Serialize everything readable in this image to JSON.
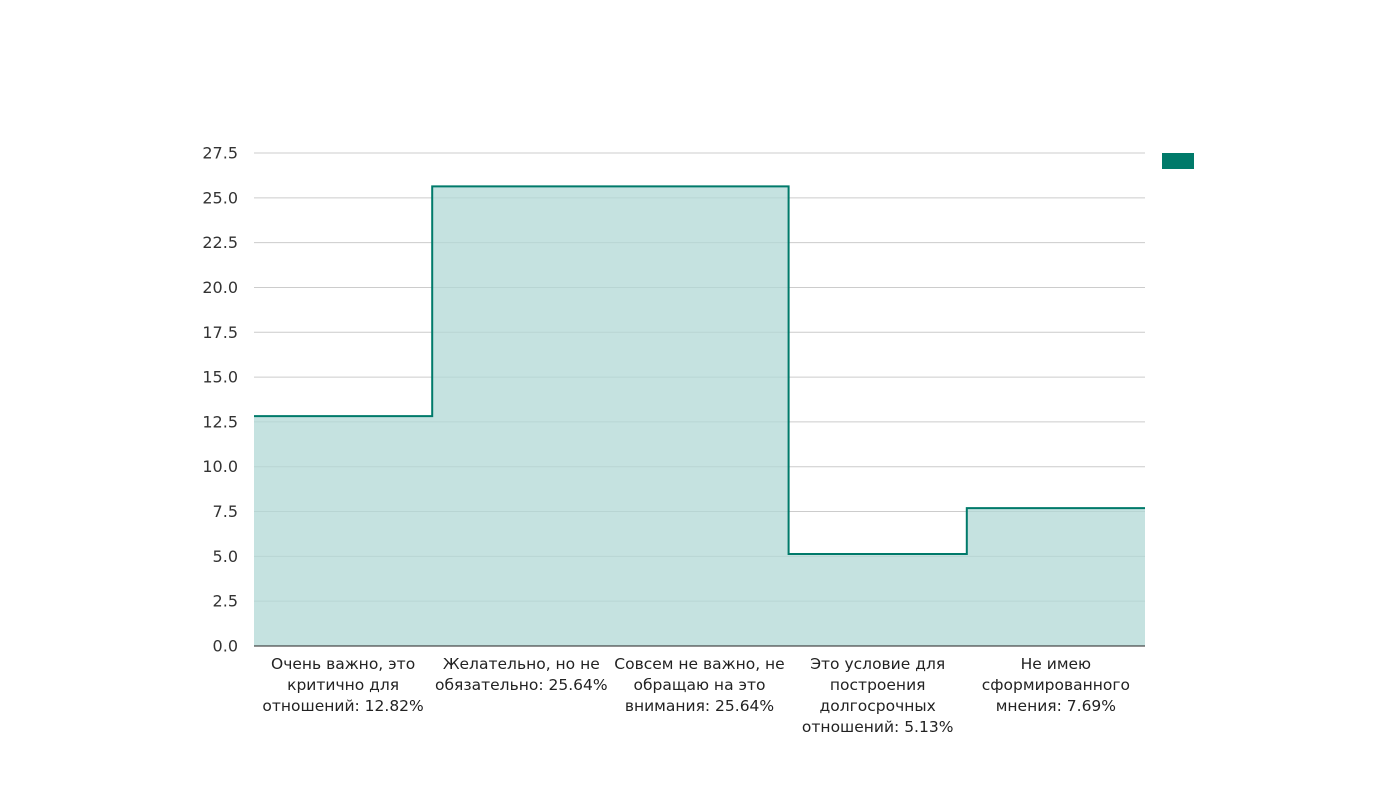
{
  "chart_data": {
    "type": "area",
    "step": true,
    "categories": [
      "Очень важно, это критично для отношений: 12.82%",
      "Желательно, но не обязательно: 25.64%",
      "Совсем не важно, не обращаю на это внимания: 25.64%",
      "Это условие для построения долгосрочных отношений: 5.13%",
      "Не имею сформированного мнения: 7.69%"
    ],
    "category_lines": [
      [
        "Очень важно, это",
        "критично для",
        "отношений: 12.82%"
      ],
      [
        "Желательно, но не",
        "обязательно: 25.64%"
      ],
      [
        "Совсем не важно, не",
        "обращаю на это",
        "внимания: 25.64%"
      ],
      [
        "Это условие для",
        "построения",
        "долгосрочных",
        "отношений: 5.13%"
      ],
      [
        "Не имею",
        "сформированного",
        "мнения: 7.69%"
      ]
    ],
    "values": [
      12.82,
      25.64,
      25.64,
      5.13,
      7.69
    ],
    "ylim": [
      0,
      27.5
    ],
    "yticks": [
      "0.0",
      "2.5",
      "5.0",
      "7.5",
      "10.0",
      "12.5",
      "15.0",
      "17.5",
      "20.0",
      "22.5",
      "25.0",
      "27.5"
    ],
    "grid": true,
    "legend": {
      "placement": "top-right",
      "label": ""
    },
    "colors": {
      "line": "#007a6a",
      "fill": "#b2d8d5",
      "grid": "#cccccc",
      "axis": "#222222"
    },
    "title": "",
    "xlabel": "",
    "ylabel": ""
  }
}
